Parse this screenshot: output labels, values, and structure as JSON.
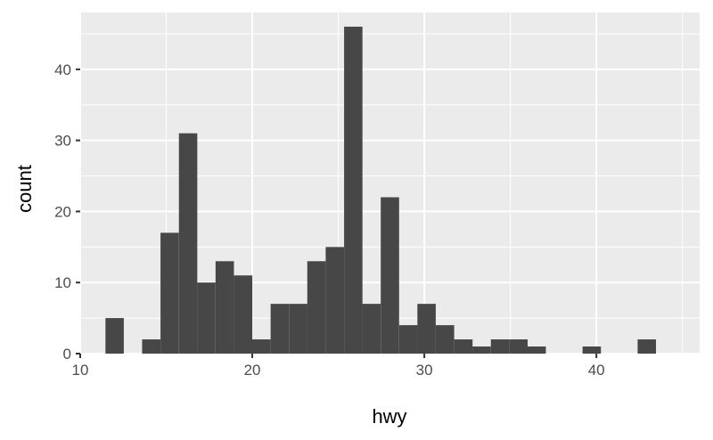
{
  "chart_data": {
    "type": "bar",
    "xlabel": "hwy",
    "ylabel": "count",
    "xlim": [
      10,
      46
    ],
    "ylim": [
      0,
      48
    ],
    "grid": true,
    "bin_width": 1.0667,
    "bins": [
      {
        "x": 12.0,
        "count": 5
      },
      {
        "x": 13.07,
        "count": 0
      },
      {
        "x": 14.13,
        "count": 2
      },
      {
        "x": 15.2,
        "count": 17
      },
      {
        "x": 16.27,
        "count": 31
      },
      {
        "x": 17.33,
        "count": 10
      },
      {
        "x": 18.4,
        "count": 13
      },
      {
        "x": 19.47,
        "count": 11
      },
      {
        "x": 20.53,
        "count": 2
      },
      {
        "x": 21.6,
        "count": 7
      },
      {
        "x": 22.67,
        "count": 7
      },
      {
        "x": 23.73,
        "count": 13
      },
      {
        "x": 24.8,
        "count": 15
      },
      {
        "x": 25.87,
        "count": 46
      },
      {
        "x": 26.93,
        "count": 7
      },
      {
        "x": 28.0,
        "count": 22
      },
      {
        "x": 29.07,
        "count": 4
      },
      {
        "x": 30.13,
        "count": 7
      },
      {
        "x": 31.2,
        "count": 4
      },
      {
        "x": 32.27,
        "count": 2
      },
      {
        "x": 33.33,
        "count": 1
      },
      {
        "x": 34.4,
        "count": 2
      },
      {
        "x": 35.47,
        "count": 2
      },
      {
        "x": 36.53,
        "count": 1
      },
      {
        "x": 37.6,
        "count": 0
      },
      {
        "x": 38.67,
        "count": 0
      },
      {
        "x": 39.73,
        "count": 1
      },
      {
        "x": 40.8,
        "count": 0
      },
      {
        "x": 41.87,
        "count": 0
      },
      {
        "x": 42.93,
        "count": 2
      }
    ],
    "x_ticks": [
      10,
      20,
      30,
      40
    ],
    "x_tick_labels": [
      "10",
      "20",
      "30",
      "40"
    ],
    "y_ticks": [
      0,
      10,
      20,
      30,
      40
    ],
    "y_tick_labels": [
      "0",
      "10",
      "20",
      "30",
      "40"
    ],
    "colors": {
      "panel": "#ebebeb",
      "grid": "#ffffff",
      "bar": "#474747",
      "tick": "#333333"
    }
  }
}
